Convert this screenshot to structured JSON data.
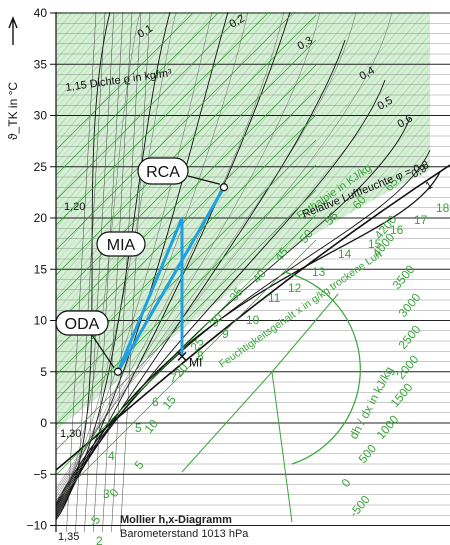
{
  "chart_data": {
    "type": "mollier-hx-diagram",
    "title": "Mollier h,x-Diagramm",
    "subtitle": "Barometerstand 1013 hPa",
    "ylabel": "ϑ_TK in °C",
    "ylim": [
      -10,
      40
    ],
    "yticks": [
      -10,
      -5,
      0,
      5,
      10,
      15,
      20,
      25,
      30,
      35,
      40
    ],
    "density_label": "1,15 Dichte ϱ in kg/m³",
    "density_ticks": [
      "1,20",
      "1,30",
      "1,35"
    ],
    "rh_label": "Relative Luftfeuchte φ = 0,8",
    "rh_ticks": [
      "0,1",
      "0,2",
      "0,3",
      "0,4",
      "0,5",
      "0,6",
      "0,7",
      "0,9",
      "1"
    ],
    "enthalpy_label": "Enthalpie in KJ/kg",
    "enthalpy_ticks": [
      "-5",
      "0",
      "5",
      "10",
      "15",
      "20",
      "25",
      "30",
      "35",
      "40",
      "45",
      "50",
      "55",
      "60",
      "65"
    ],
    "x_label": "Feuchtigkeitsgehalt x in g/kg trockene Luft",
    "x_ticks": [
      "2",
      "3",
      "4",
      "5",
      "6",
      "7",
      "8",
      "9",
      "10",
      "11",
      "12",
      "13",
      "14",
      "15",
      "16",
      "17",
      "18"
    ],
    "protractor_label": "dh / dx in kJ/kg",
    "protractor_ticks": [
      "-500",
      "0",
      "500",
      "1000",
      "1500",
      "2000",
      "2500",
      "3000",
      "3500",
      "4000",
      "4200"
    ],
    "points": [
      {
        "name": "RCA",
        "t": 23
      },
      {
        "name": "MIA"
      },
      {
        "name": "ODA",
        "t": 5
      },
      {
        "name": "MI",
        "t": 6.5
      }
    ],
    "colors": {
      "grid_green": "#3aa53a",
      "hatch_green": "#9fd39f",
      "process_blue": "#1fa0e0",
      "black": "#111111"
    }
  }
}
